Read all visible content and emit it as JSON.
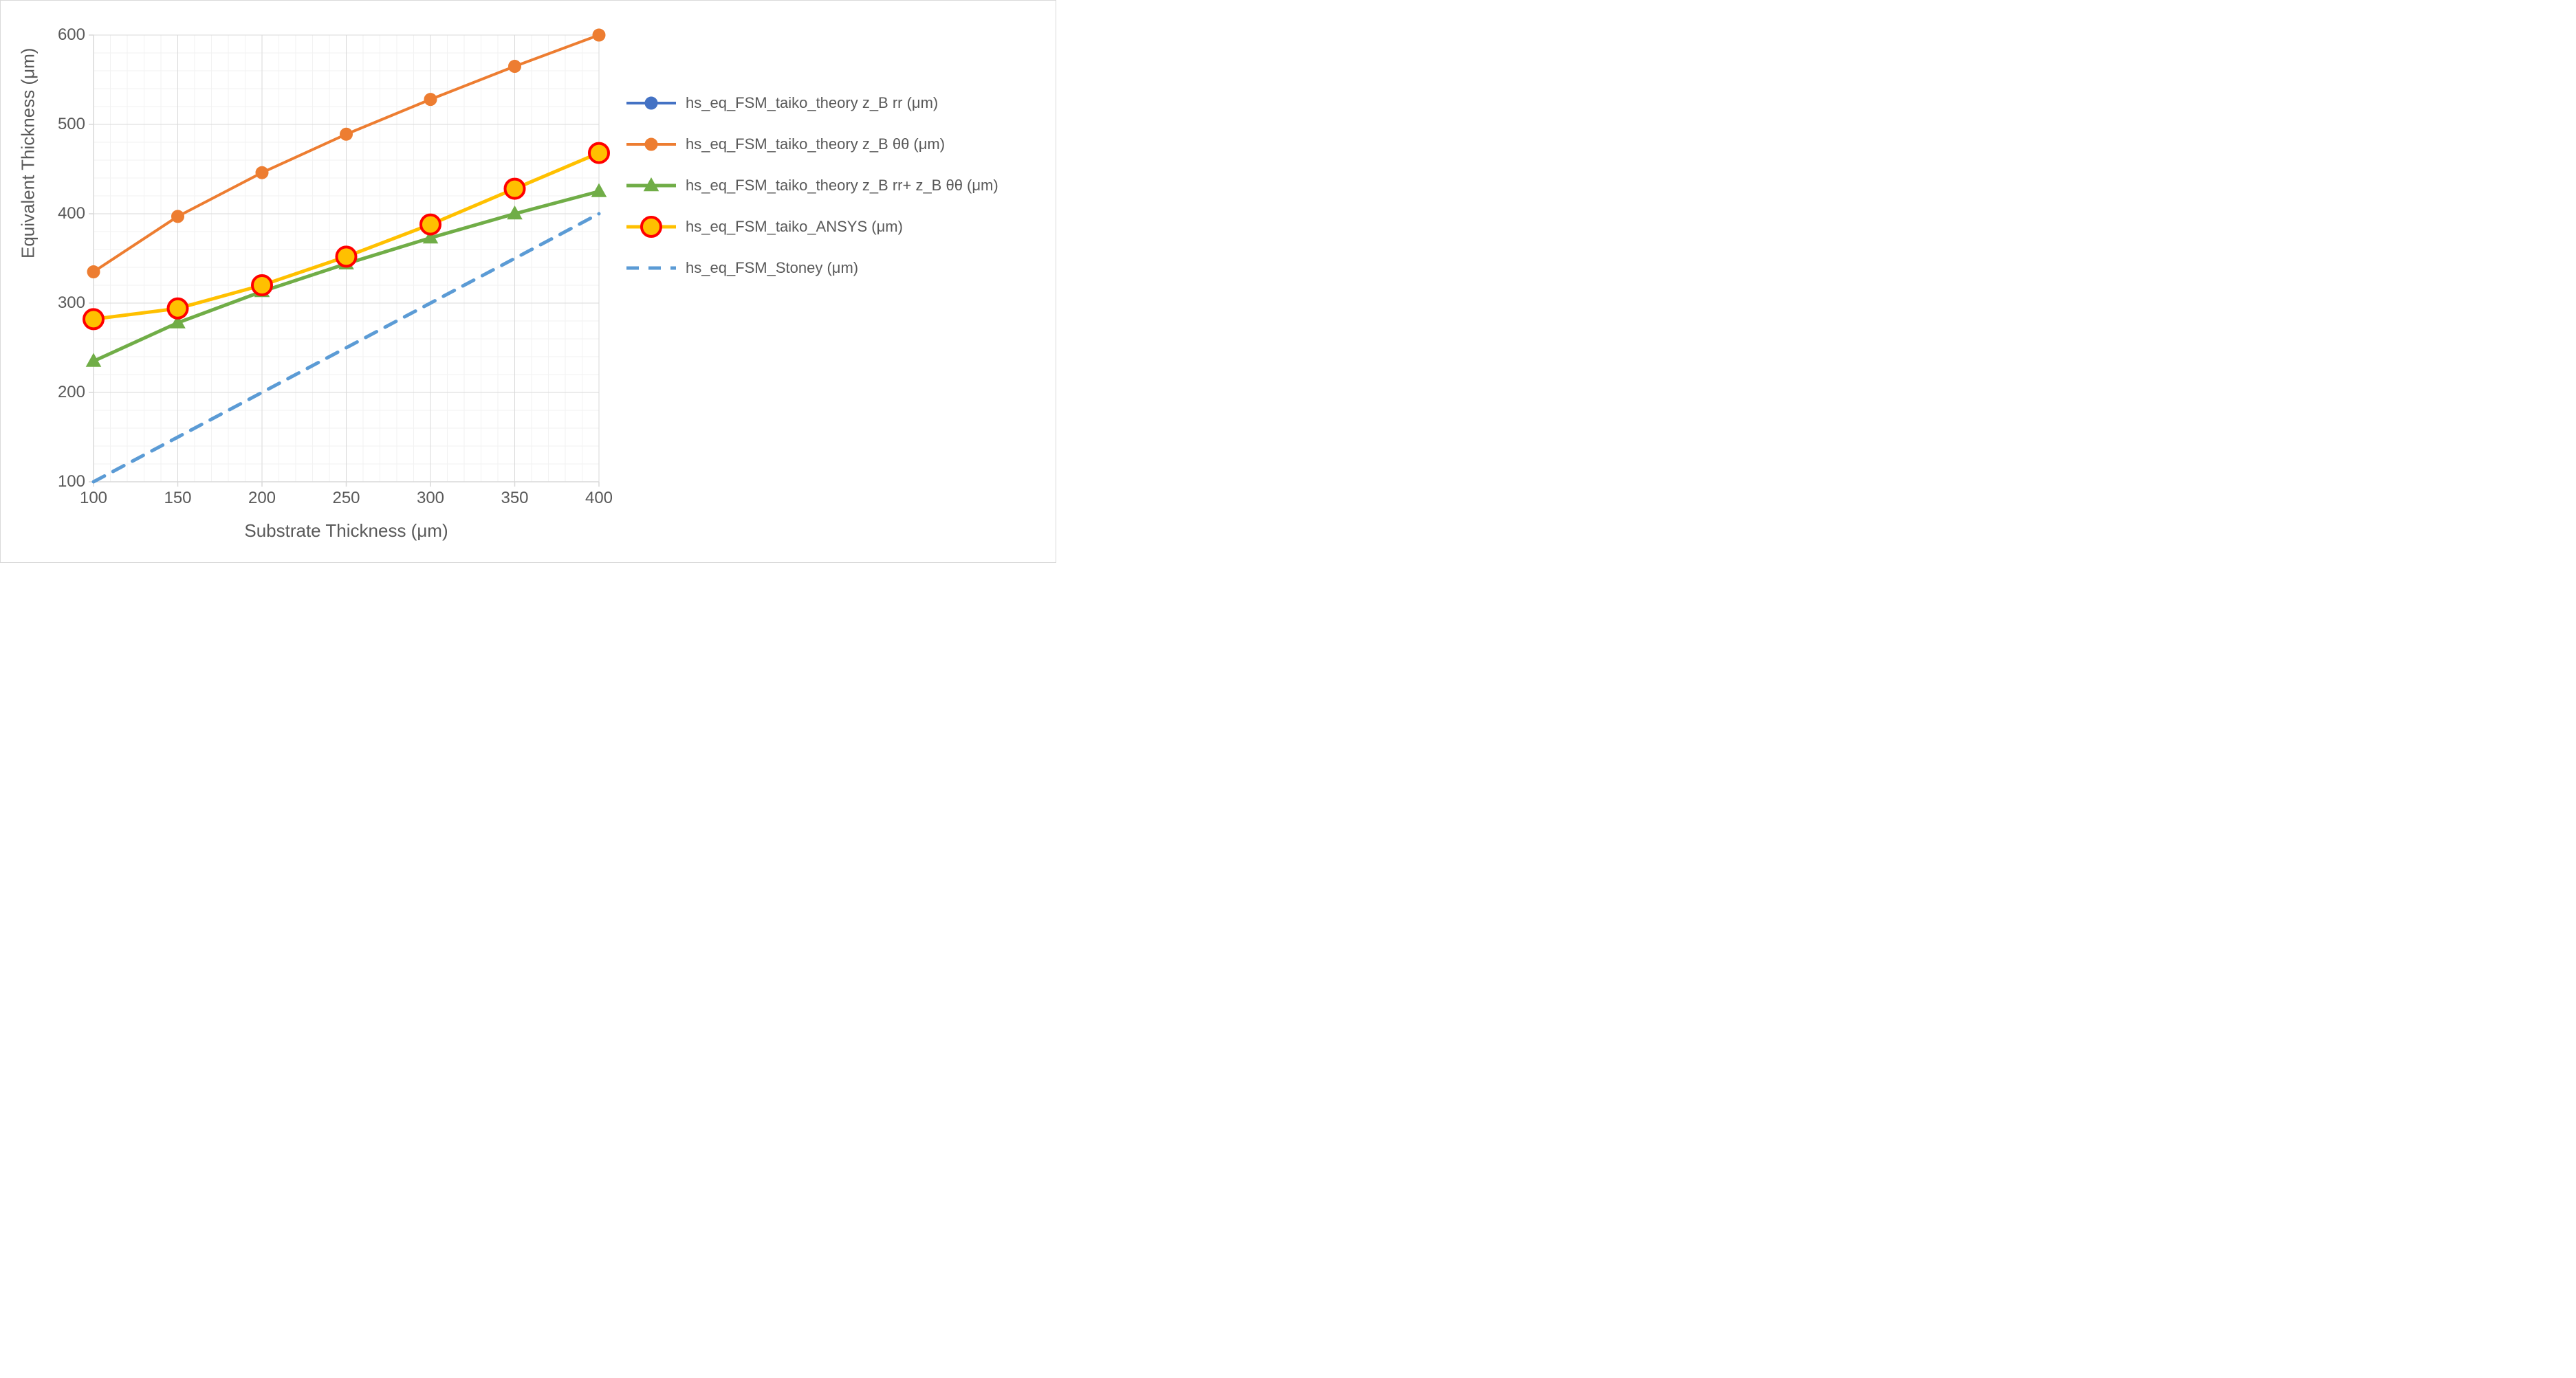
{
  "chart": {
    "type": "line",
    "background_color": "#ffffff",
    "border_color": "#d9d9d9",
    "plot_bg_color": "#ffffff",
    "grid_major_color": "#d9d9d9",
    "grid_minor_color": "#f2f2f2",
    "axis_line_color": "#d9d9d9",
    "xlabel": "Substrate Thickness (μm)",
    "ylabel": "Equivalent Thickness (μm)",
    "label_fontsize": 26,
    "tick_fontsize": 24,
    "label_color": "#595959",
    "tick_color": "#595959",
    "xlim": [
      100,
      400
    ],
    "ylim": [
      100,
      600
    ],
    "xtick_step_major": 50,
    "ytick_step_major": 100,
    "xtick_step_minor": 10,
    "ytick_step_minor": 20,
    "x_values": [
      100,
      150,
      200,
      250,
      300,
      350,
      400
    ],
    "series": [
      {
        "name": "hs_eq_FSM_taiko_theory z_B rr (μm)",
        "color": "#4472c4",
        "line_width": 4,
        "marker": "circle",
        "marker_size": 9,
        "dash": "solid",
        "values": [
          282,
          294,
          320,
          352,
          388,
          428,
          468
        ]
      },
      {
        "name": "hs_eq_FSM_taiko_theory z_B θθ (μm)",
        "color": "#ed7d31",
        "line_width": 4,
        "marker": "circle",
        "marker_size": 9,
        "dash": "solid",
        "values": [
          335,
          397,
          446,
          489,
          528,
          565,
          600
        ]
      },
      {
        "name": "hs_eq_FSM_taiko_theory z_B rr+ z_B θθ (μm)",
        "color": "#70ad47",
        "line_width": 5,
        "marker": "triangle",
        "marker_size": 11,
        "dash": "solid",
        "values": [
          235,
          278,
          313,
          344,
          373,
          400,
          425
        ]
      },
      {
        "name": "hs_eq_FSM_taiko_ANSYS (μm)",
        "color": "#ffc000",
        "line_width": 5,
        "marker": "ring-red",
        "marker_size": 14,
        "ring_color": "#ff0000",
        "ring_fill": "#ffc000",
        "ring_stroke_width": 4,
        "dash": "solid",
        "values": [
          282,
          294,
          320,
          352,
          388,
          428,
          468
        ]
      },
      {
        "name": "hs_eq_FSM_Stoney (μm)",
        "color": "#5b9bd5",
        "line_width": 5,
        "marker": "none",
        "dash": "dashed",
        "dash_pattern": "18 14",
        "values": [
          100,
          150,
          200,
          250,
          300,
          350,
          400
        ]
      }
    ],
    "legend": {
      "fontsize": 22,
      "color": "#595959",
      "position": "right"
    }
  }
}
